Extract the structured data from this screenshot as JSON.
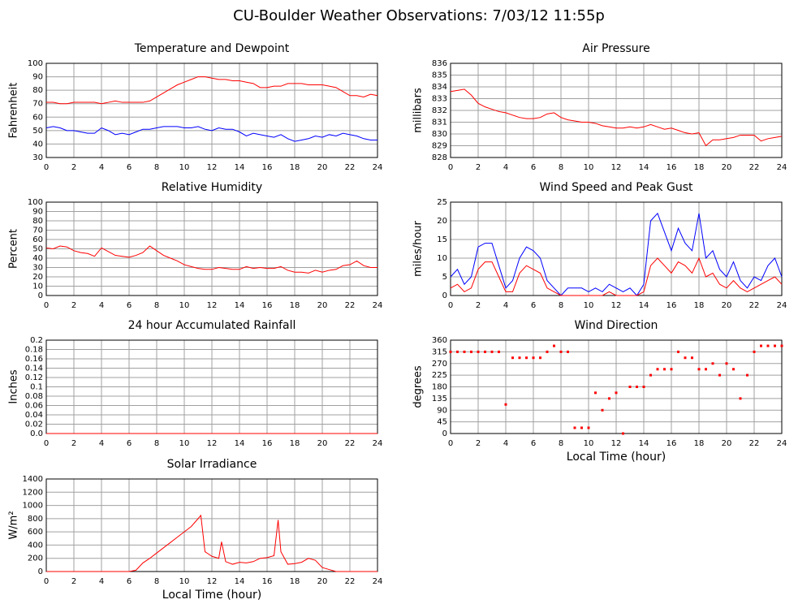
{
  "title": "CU-Boulder Weather Observations: 7/03/12 11:55p",
  "chart_data": [
    {
      "type": "line",
      "title": "Temperature and Dewpoint",
      "ylabel": "Fahrenheit",
      "grid": true,
      "x": [
        0,
        0.5,
        1,
        1.5,
        2,
        2.5,
        3,
        3.5,
        4,
        4.5,
        5,
        5.5,
        6,
        6.5,
        7,
        7.5,
        8,
        8.5,
        9,
        9.5,
        10,
        10.5,
        11,
        11.5,
        12,
        12.5,
        13,
        13.5,
        14,
        14.5,
        15,
        15.5,
        16,
        16.5,
        17,
        17.5,
        18,
        18.5,
        19,
        19.5,
        20,
        20.5,
        21,
        21.5,
        22,
        22.5,
        23,
        23.5,
        24
      ],
      "series": [
        {
          "color": "#ff0000",
          "values": [
            71,
            71,
            70,
            70,
            71,
            71,
            71,
            71,
            70,
            71,
            72,
            71,
            71,
            71,
            71,
            72,
            75,
            78,
            81,
            84,
            86,
            88,
            90,
            90,
            89,
            88,
            88,
            87,
            87,
            86,
            85,
            82,
            82,
            83,
            83,
            85,
            85,
            85,
            84,
            84,
            84,
            83,
            82,
            79,
            76,
            76,
            75,
            77,
            76
          ]
        },
        {
          "color": "#0000ff",
          "values": [
            52,
            53,
            52,
            50,
            50,
            49,
            48,
            48,
            52,
            50,
            47,
            48,
            47,
            49,
            51,
            51,
            52,
            53,
            53,
            53,
            52,
            52,
            53,
            51,
            50,
            52,
            51,
            51,
            49,
            46,
            48,
            47,
            46,
            45,
            47,
            44,
            42,
            43,
            44,
            46,
            45,
            47,
            46,
            48,
            47,
            46,
            44,
            43,
            43
          ]
        }
      ],
      "xlim": [
        0,
        24
      ],
      "xticks": [
        0,
        2,
        4,
        6,
        8,
        10,
        12,
        14,
        16,
        18,
        20,
        22,
        24
      ],
      "ylim": [
        30,
        100
      ],
      "yticks": [
        30,
        40,
        50,
        60,
        70,
        80,
        90,
        100
      ]
    },
    {
      "type": "line",
      "title": "Air Pressure",
      "ylabel": "millibars",
      "grid": true,
      "x": [
        0,
        0.5,
        1,
        1.5,
        2,
        2.5,
        3,
        3.5,
        4,
        4.5,
        5,
        5.5,
        6,
        6.5,
        7,
        7.5,
        8,
        8.5,
        9,
        9.5,
        10,
        10.5,
        11,
        11.5,
        12,
        12.5,
        13,
        13.5,
        14,
        14.5,
        15,
        15.5,
        16,
        16.5,
        17,
        17.5,
        18,
        18.5,
        19,
        19.5,
        20,
        20.5,
        21,
        21.5,
        22,
        22.5,
        23,
        23.5,
        24
      ],
      "series": [
        {
          "color": "#ff0000",
          "values": [
            833.6,
            833.7,
            833.8,
            833.3,
            832.6,
            832.3,
            832.1,
            831.9,
            831.8,
            831.6,
            831.4,
            831.3,
            831.3,
            831.4,
            831.7,
            831.8,
            831.4,
            831.2,
            831.1,
            831.0,
            831.0,
            830.9,
            830.7,
            830.6,
            830.5,
            830.5,
            830.6,
            830.5,
            830.6,
            830.8,
            830.6,
            830.4,
            830.5,
            830.3,
            830.1,
            830.0,
            830.1,
            829.0,
            829.5,
            829.5,
            829.6,
            829.7,
            829.9,
            829.9,
            829.9,
            829.4,
            829.6,
            829.7,
            829.8
          ]
        }
      ],
      "xlim": [
        0,
        24
      ],
      "xticks": [
        0,
        2,
        4,
        6,
        8,
        10,
        12,
        14,
        16,
        18,
        20,
        22,
        24
      ],
      "ylim": [
        828,
        836
      ],
      "yticks": [
        828,
        829,
        830,
        831,
        832,
        833,
        834,
        835,
        836
      ]
    },
    {
      "type": "line",
      "title": "Relative Humidity",
      "ylabel": "Percent",
      "grid": true,
      "x": [
        0,
        0.5,
        1,
        1.5,
        2,
        2.5,
        3,
        3.5,
        4,
        4.5,
        5,
        5.5,
        6,
        6.5,
        7,
        7.5,
        8,
        8.5,
        9,
        9.5,
        10,
        10.5,
        11,
        11.5,
        12,
        12.5,
        13,
        13.5,
        14,
        14.5,
        15,
        15.5,
        16,
        16.5,
        17,
        17.5,
        18,
        18.5,
        19,
        19.5,
        20,
        20.5,
        21,
        21.5,
        22,
        22.5,
        23,
        23.5,
        24
      ],
      "series": [
        {
          "color": "#ff0000",
          "values": [
            51,
            50,
            53,
            52,
            48,
            46,
            45,
            42,
            51,
            47,
            43,
            42,
            41,
            43,
            46,
            53,
            48,
            43,
            40,
            37,
            33,
            31,
            29,
            28,
            28,
            30,
            29,
            28,
            28,
            31,
            29,
            30,
            29,
            29,
            31,
            27,
            25,
            25,
            24,
            27,
            25,
            27,
            28,
            32,
            33,
            37,
            32,
            30,
            30
          ]
        }
      ],
      "xlim": [
        0,
        24
      ],
      "xticks": [
        0,
        2,
        4,
        6,
        8,
        10,
        12,
        14,
        16,
        18,
        20,
        22,
        24
      ],
      "ylim": [
        0,
        100
      ],
      "yticks": [
        0,
        10,
        20,
        30,
        40,
        50,
        60,
        70,
        80,
        90,
        100
      ]
    },
    {
      "type": "line",
      "title": "Wind Speed and Peak Gust",
      "ylabel": "miles/hour",
      "grid": true,
      "x": [
        0,
        0.5,
        1,
        1.5,
        2,
        2.5,
        3,
        3.5,
        4,
        4.5,
        5,
        5.5,
        6,
        6.5,
        7,
        7.5,
        8,
        8.5,
        9,
        9.5,
        10,
        10.5,
        11,
        11.5,
        12,
        12.5,
        13,
        13.5,
        14,
        14.5,
        15,
        15.5,
        16,
        16.5,
        17,
        17.5,
        18,
        18.5,
        19,
        19.5,
        20,
        20.5,
        21,
        21.5,
        22,
        22.5,
        23,
        23.5,
        24
      ],
      "series": [
        {
          "color": "#0000ff",
          "values": [
            5,
            7,
            3,
            5,
            13,
            14,
            14,
            8,
            2,
            4,
            10,
            13,
            12,
            10,
            4,
            2,
            0,
            2,
            2,
            2,
            1,
            2,
            1,
            3,
            2,
            1,
            2,
            0,
            3,
            20,
            22,
            17,
            12,
            18,
            14,
            12,
            22,
            10,
            12,
            7,
            5,
            9,
            4,
            2,
            5,
            4,
            8,
            10,
            5
          ]
        },
        {
          "color": "#ff0000",
          "values": [
            2,
            3,
            1,
            2,
            7,
            9,
            9,
            5,
            1,
            1,
            6,
            8,
            7,
            6,
            2,
            1,
            0,
            0,
            0,
            0,
            0,
            0,
            0,
            1,
            0,
            0,
            0,
            0,
            1,
            8,
            10,
            8,
            6,
            9,
            8,
            6,
            10,
            5,
            6,
            3,
            2,
            4,
            2,
            1,
            2,
            3,
            4,
            5,
            3
          ]
        }
      ],
      "xlim": [
        0,
        24
      ],
      "xticks": [
        0,
        2,
        4,
        6,
        8,
        10,
        12,
        14,
        16,
        18,
        20,
        22,
        24
      ],
      "ylim": [
        0,
        25
      ],
      "yticks": [
        0,
        5,
        10,
        15,
        20,
        25
      ]
    },
    {
      "type": "line",
      "title": "24 hour Accumulated Rainfall",
      "ylabel": "Inches",
      "grid": true,
      "x": [
        0,
        24
      ],
      "series": [
        {
          "color": "#ff0000",
          "values": [
            0,
            0
          ]
        }
      ],
      "xlim": [
        0,
        24
      ],
      "xticks": [
        0,
        2,
        4,
        6,
        8,
        10,
        12,
        14,
        16,
        18,
        20,
        22,
        24
      ],
      "ylim": [
        0,
        0.2
      ],
      "yticks": [
        {
          "value": 0,
          "label": "0.0"
        },
        0.02,
        0.04,
        0.06,
        0.08,
        0.1,
        0.12,
        0.14,
        0.16,
        0.18,
        0.2
      ]
    },
    {
      "type": "scatter",
      "title": "Wind Direction",
      "ylabel": "degrees",
      "xlabel": "Local Time (hour)",
      "grid": true,
      "x": [
        0,
        0.5,
        1,
        1.5,
        2,
        2.5,
        3,
        3.5,
        4,
        4.5,
        5,
        5.5,
        6,
        6.5,
        7,
        7.5,
        8,
        8.5,
        9,
        9.5,
        10,
        10.5,
        11,
        11.5,
        12,
        12.5,
        13,
        13.5,
        14,
        14.5,
        15,
        15.5,
        16,
        16.5,
        17,
        17.5,
        18,
        18.5,
        19,
        19.5,
        20,
        20.5,
        21,
        21.5,
        22,
        22.5,
        23,
        23.5,
        24
      ],
      "series": [
        {
          "color": "#ff0000",
          "values": [
            315,
            315,
            315,
            315,
            315,
            315,
            315,
            315,
            112,
            292,
            292,
            292,
            292,
            292,
            315,
            338,
            315,
            315,
            22,
            22,
            22,
            157,
            90,
            135,
            157,
            0,
            180,
            180,
            180,
            225,
            248,
            248,
            248,
            315,
            292,
            292,
            248,
            248,
            270,
            225,
            270,
            248,
            135,
            225,
            315,
            338,
            338,
            338,
            338
          ]
        }
      ],
      "xlim": [
        0,
        24
      ],
      "xticks": [
        0,
        2,
        4,
        6,
        8,
        10,
        12,
        14,
        16,
        18,
        20,
        22,
        24
      ],
      "ylim": [
        0,
        360
      ],
      "yticks": [
        0,
        45,
        90,
        135,
        180,
        225,
        270,
        315,
        360
      ]
    },
    {
      "type": "line",
      "title": "Solar Irradiance",
      "ylabel": "W/m²",
      "xlabel": "Local Time (hour)",
      "grid": true,
      "x": [
        0,
        6,
        6.5,
        7,
        7.5,
        8,
        8.5,
        9,
        9.5,
        10,
        10.5,
        11,
        11.2,
        11.5,
        12,
        12.5,
        12.7,
        13,
        13.5,
        14,
        14.5,
        15,
        15.5,
        16,
        16.5,
        16.8,
        17,
        17.5,
        18,
        18.5,
        19,
        19.5,
        20,
        20.5,
        21,
        24
      ],
      "series": [
        {
          "color": "#ff0000",
          "values": [
            0,
            0,
            20,
            130,
            200,
            280,
            360,
            440,
            520,
            600,
            680,
            800,
            850,
            300,
            230,
            200,
            450,
            150,
            110,
            140,
            130,
            150,
            200,
            210,
            240,
            780,
            300,
            110,
            120,
            140,
            200,
            170,
            60,
            30,
            0,
            0
          ]
        }
      ],
      "xlim": [
        0,
        24
      ],
      "xticks": [
        0,
        2,
        4,
        6,
        8,
        10,
        12,
        14,
        16,
        18,
        20,
        22,
        24
      ],
      "ylim": [
        0,
        1400
      ],
      "yticks": [
        0,
        200,
        400,
        600,
        800,
        1000,
        1200,
        1400
      ]
    }
  ]
}
